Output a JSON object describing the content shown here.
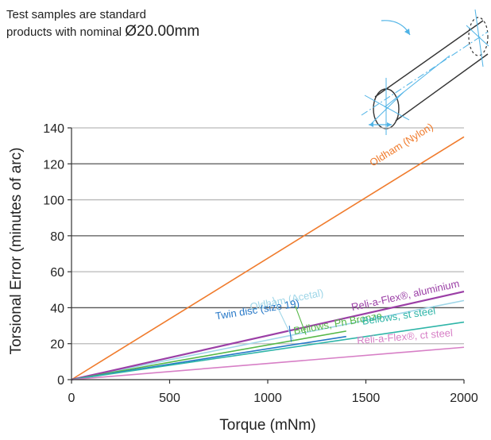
{
  "note": {
    "line1": "Test samples are standard",
    "line2_prefix": "products with nominal ",
    "line2_value": "Ø20.00mm"
  },
  "chart_data": {
    "type": "line",
    "title": "",
    "xlabel": "Torque (mNm)",
    "ylabel": "Torsional Error (minutes of arc)",
    "xlim": [
      0,
      2000
    ],
    "ylim": [
      0,
      140
    ],
    "xticks": [
      0,
      500,
      1000,
      1500,
      2000
    ],
    "yticks": [
      0,
      20,
      40,
      60,
      80,
      100,
      120,
      140
    ],
    "grid": "horizontal",
    "series": [
      {
        "name": "Oldham (Nylon)",
        "color": "#f07b2c",
        "x": [
          0,
          2000
        ],
        "y": [
          0,
          135
        ]
      },
      {
        "name": "Oldham (Acetal)",
        "color": "#9fd6e8",
        "x": [
          0,
          2000
        ],
        "y": [
          0,
          44
        ]
      },
      {
        "name": "Reli-a-Flex®, aluminium",
        "color": "#9b3fa6",
        "x": [
          0,
          2000
        ],
        "y": [
          0,
          49
        ]
      },
      {
        "name": "Bellows, Ph Bronze",
        "color": "#56b848",
        "x": [
          0,
          1400
        ],
        "y": [
          0,
          27
        ]
      },
      {
        "name": "Twin disc (size 19)",
        "color": "#2577c7",
        "x": [
          0,
          1400
        ],
        "y": [
          0,
          24
        ]
      },
      {
        "name": "Bellows, st steel",
        "color": "#2fb5a8",
        "x": [
          0,
          2000
        ],
        "y": [
          0,
          32
        ]
      },
      {
        "name": "Reli-a-Flex®, ct steel",
        "color": "#d77fc6",
        "x": [
          0,
          2000
        ],
        "y": [
          0,
          18
        ]
      }
    ]
  }
}
